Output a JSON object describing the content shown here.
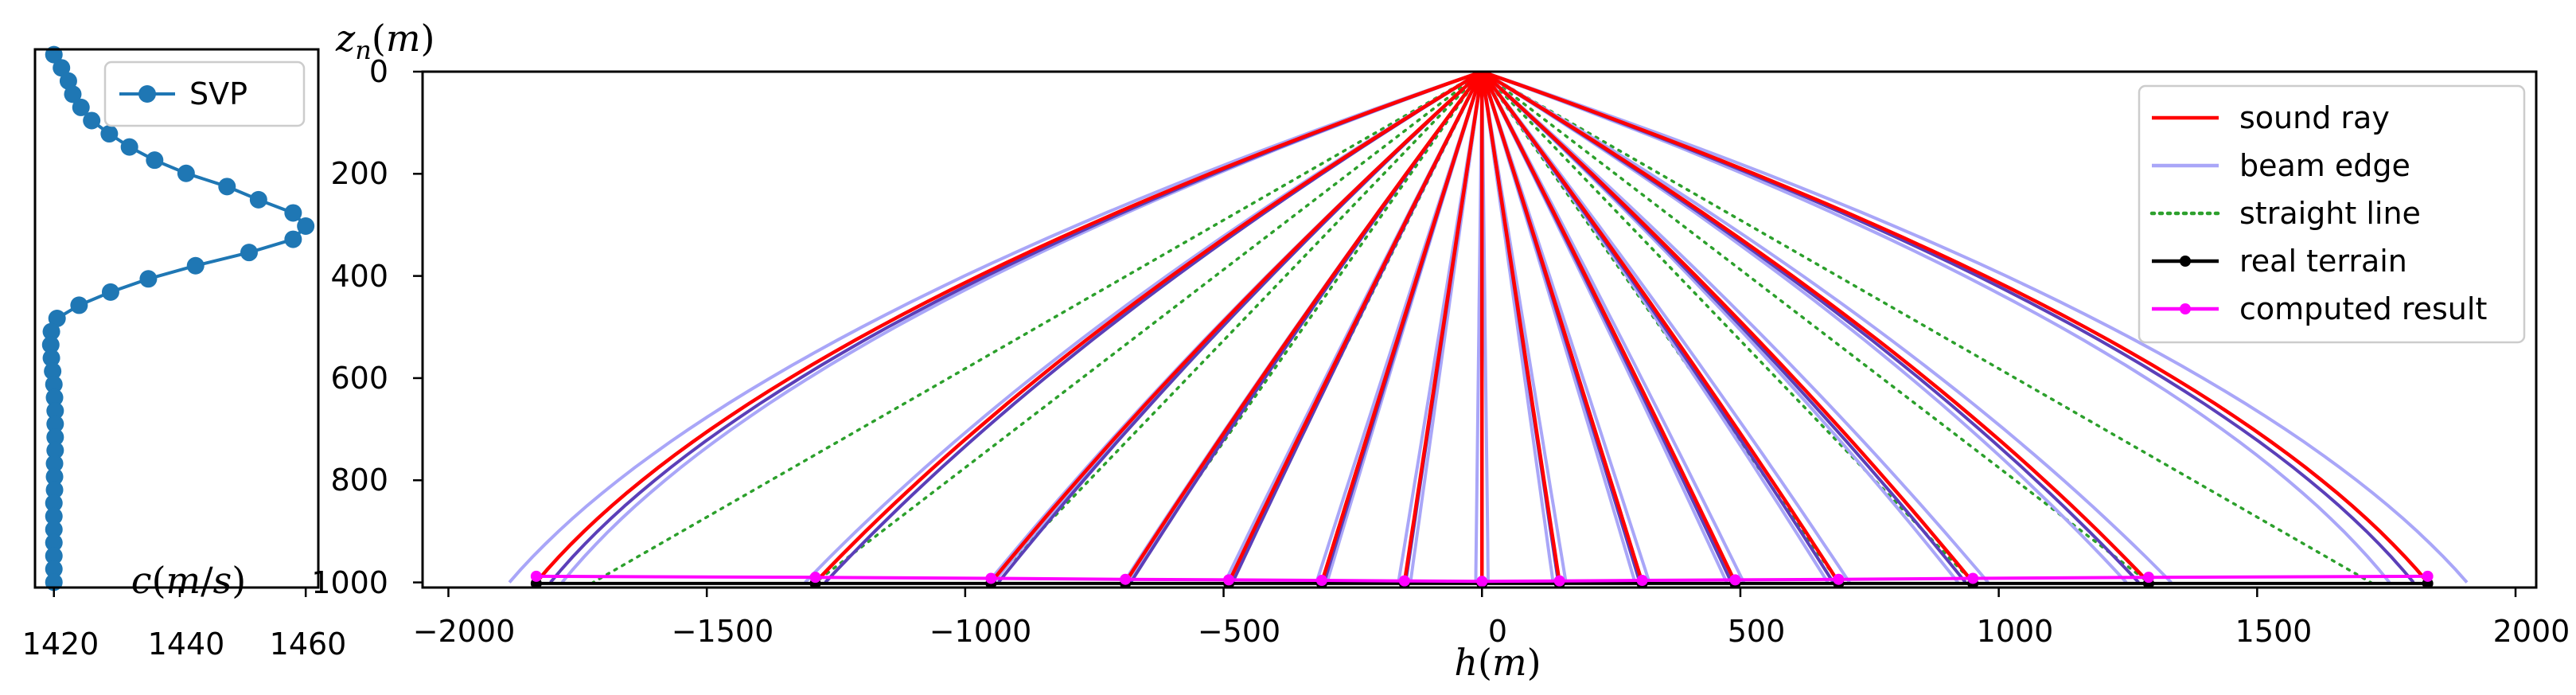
{
  "chart_data": [
    {
      "type": "line",
      "xlabel": "c(m/s)",
      "ylabel": "",
      "xlim": [
        1417,
        1462
      ],
      "ylim": [
        1010,
        -10
      ],
      "xticks": [
        1420,
        1440,
        1460
      ],
      "legend": {
        "placement": "top-right",
        "entries": [
          "SVP"
        ]
      },
      "series": [
        {
          "name": "SVP",
          "color": "#1f77b4",
          "marker": "circle",
          "points": [
            [
              1420.0,
              0
            ],
            [
              1421.2,
              25
            ],
            [
              1422.3,
              50
            ],
            [
              1423.0,
              75
            ],
            [
              1424.3,
              100
            ],
            [
              1426.0,
              125
            ],
            [
              1428.8,
              150
            ],
            [
              1432.0,
              175
            ],
            [
              1436.0,
              200
            ],
            [
              1441.0,
              225
            ],
            [
              1447.5,
              250
            ],
            [
              1452.5,
              275
            ],
            [
              1458.0,
              300
            ],
            [
              1460.0,
              325
            ],
            [
              1458.0,
              350
            ],
            [
              1451.0,
              375
            ],
            [
              1442.5,
              400
            ],
            [
              1435.0,
              425
            ],
            [
              1429.0,
              450
            ],
            [
              1424.0,
              475
            ],
            [
              1420.5,
              500
            ],
            [
              1419.6,
              525
            ],
            [
              1419.5,
              550
            ],
            [
              1419.6,
              575
            ],
            [
              1419.8,
              600
            ],
            [
              1420.0,
              625
            ],
            [
              1420.1,
              650
            ],
            [
              1420.2,
              675
            ],
            [
              1420.2,
              700
            ],
            [
              1420.2,
              725
            ],
            [
              1420.2,
              750
            ],
            [
              1420.1,
              775
            ],
            [
              1420.1,
              800
            ],
            [
              1420.1,
              825
            ],
            [
              1420.0,
              850
            ],
            [
              1420.0,
              875
            ],
            [
              1420.0,
              900
            ],
            [
              1420.0,
              925
            ],
            [
              1420.0,
              950
            ],
            [
              1420.0,
              975
            ],
            [
              1420.0,
              1000
            ]
          ]
        }
      ]
    },
    {
      "type": "line",
      "xlabel": "h(m)",
      "ylabel": "z_n(m)",
      "xlim": [
        -2050,
        2040
      ],
      "ylim": [
        1010,
        0
      ],
      "xticks": [
        -2000,
        -1500,
        -1000,
        -500,
        0,
        500,
        1000,
        1500,
        2000
      ],
      "yticks": [
        0,
        200,
        400,
        600,
        800,
        1000
      ],
      "legend": {
        "placement": "top-right",
        "entries": [
          "sound ray",
          "beam edge",
          "straight line",
          "real terrain",
          "computed result"
        ]
      },
      "colors": {
        "sound_ray": "#ff0000",
        "beam_edge": "#a9a6f8",
        "straight_line": "#2ca02c",
        "real_terrain": "#000000",
        "computed_result": "#ff00ff"
      },
      "ray_endpoints_x": [
        -1830,
        -1290,
        -950,
        -690,
        -490,
        -310,
        -150,
        0,
        150,
        310,
        490,
        690,
        950,
        1290,
        1830
      ],
      "beam_outer_x": [
        -1890,
        1890
      ],
      "straight_outer_x": [
        -1720,
        1720
      ],
      "bottom_depth": 1000,
      "real_terrain": {
        "x": [
          -1830,
          -1290,
          -950,
          -690,
          -490,
          -310,
          -150,
          0,
          150,
          310,
          490,
          690,
          950,
          1290,
          1830
        ],
        "z": [
          1002,
          1002,
          1002,
          1002,
          1002,
          1002,
          1002,
          1002,
          1002,
          1002,
          1002,
          1002,
          1002,
          1002,
          1002
        ]
      },
      "computed_result": {
        "x": [
          -1830,
          -1290,
          -950,
          -690,
          -490,
          -310,
          -150,
          0,
          150,
          310,
          490,
          690,
          950,
          1290,
          1830
        ],
        "z": [
          988,
          990,
          992,
          994,
          995,
          996,
          997,
          998,
          997,
          996,
          995,
          994,
          992,
          990,
          988
        ]
      }
    }
  ],
  "math": {
    "c_italic": "c",
    "c_paren_open": "(",
    "c_m": "m",
    "c_slash": "/",
    "c_s": "s",
    "c_paren_close": ")",
    "h_italic": "h",
    "h_paren_open": "(",
    "h_m": "m",
    "h_paren_close": ")",
    "z_italic": "z",
    "z_sub": "n",
    "z_paren_open": "(",
    "z_m": "m",
    "z_paren_close": ")"
  },
  "tick_labels": {
    "left_x": [
      "1420",
      "1440",
      "1460"
    ],
    "right_x": [
      "−2000",
      "−1500",
      "−1000",
      "−500",
      "0",
      "500",
      "1000",
      "1500",
      "2000"
    ],
    "right_y": [
      "0",
      "200",
      "400",
      "600",
      "800",
      "1000"
    ]
  },
  "legend_labels": {
    "svp": "SVP",
    "sound_ray": "sound ray",
    "beam_edge": "beam edge",
    "straight_line": "straight line",
    "real_terrain": "real terrain",
    "computed_result": "computed result"
  }
}
